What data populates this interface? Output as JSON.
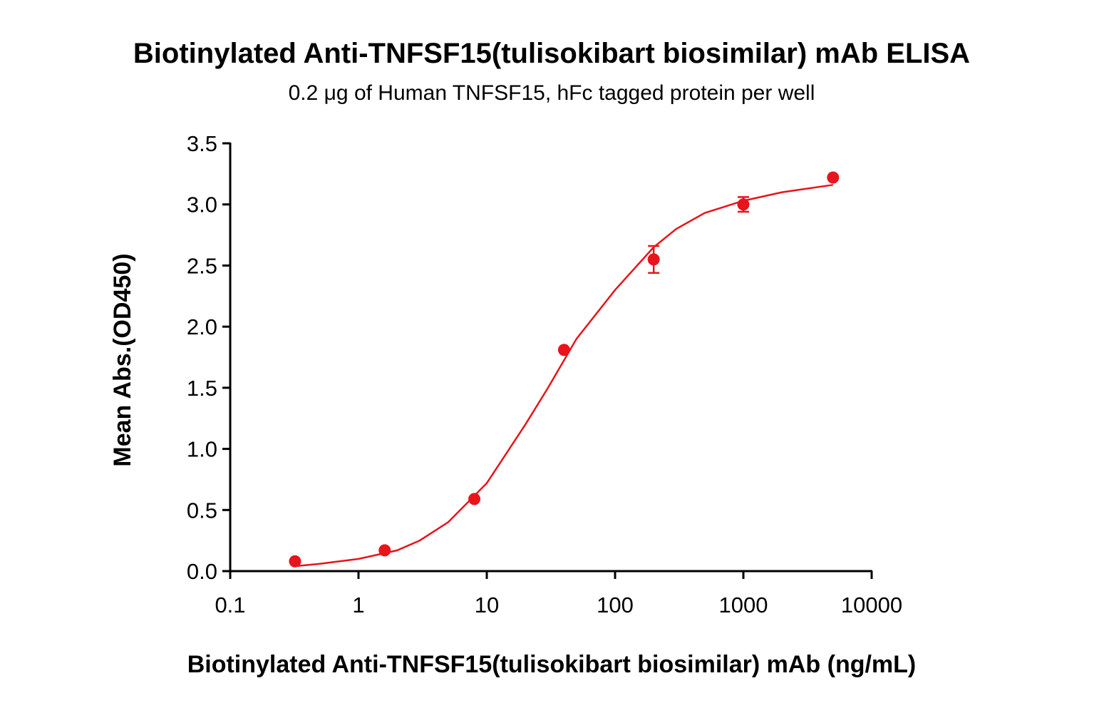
{
  "chart_data": {
    "type": "scatter",
    "title": "Biotinylated Anti-TNFSF15(tulisokibart biosimilar) mAb ELISA",
    "subtitle": "0.2 μg of Human TNFSF15, hFc tagged protein per well",
    "x_label": "Biotinylated Anti-TNFSF15(tulisokibart biosimilar) mAb (ng/mL)",
    "y_label": "Mean Abs.(OD450)",
    "x_scale": "log",
    "xlim": [
      0.1,
      10000
    ],
    "xticks": [
      0.1,
      1,
      10,
      100,
      1000,
      10000
    ],
    "ylim": [
      0,
      3.5
    ],
    "yticks": [
      {
        "value": 0,
        "label": "0.0"
      },
      0.5,
      {
        "value": 1,
        "label": "1.0"
      },
      1.5,
      {
        "value": 2,
        "label": "2.0"
      },
      2.5,
      {
        "value": 3,
        "label": "3.0"
      },
      3.5
    ],
    "color": "#e8141b",
    "x": [
      0.32,
      1.6,
      8,
      40,
      200,
      1000,
      5000
    ],
    "values": [
      0.08,
      0.17,
      0.59,
      1.81,
      2.55,
      3.0,
      3.22
    ],
    "errors": [
      null,
      null,
      null,
      null,
      0.11,
      0.06,
      null
    ],
    "curve": {
      "x": [
        0.32,
        0.5,
        1,
        2,
        3,
        5,
        10,
        20,
        30,
        50,
        100,
        200,
        300,
        500,
        1000,
        2000,
        5000
      ],
      "values": [
        0.04,
        0.06,
        0.1,
        0.17,
        0.25,
        0.4,
        0.72,
        1.2,
        1.5,
        1.9,
        2.3,
        2.65,
        2.8,
        2.93,
        3.03,
        3.1,
        3.16
      ]
    }
  }
}
